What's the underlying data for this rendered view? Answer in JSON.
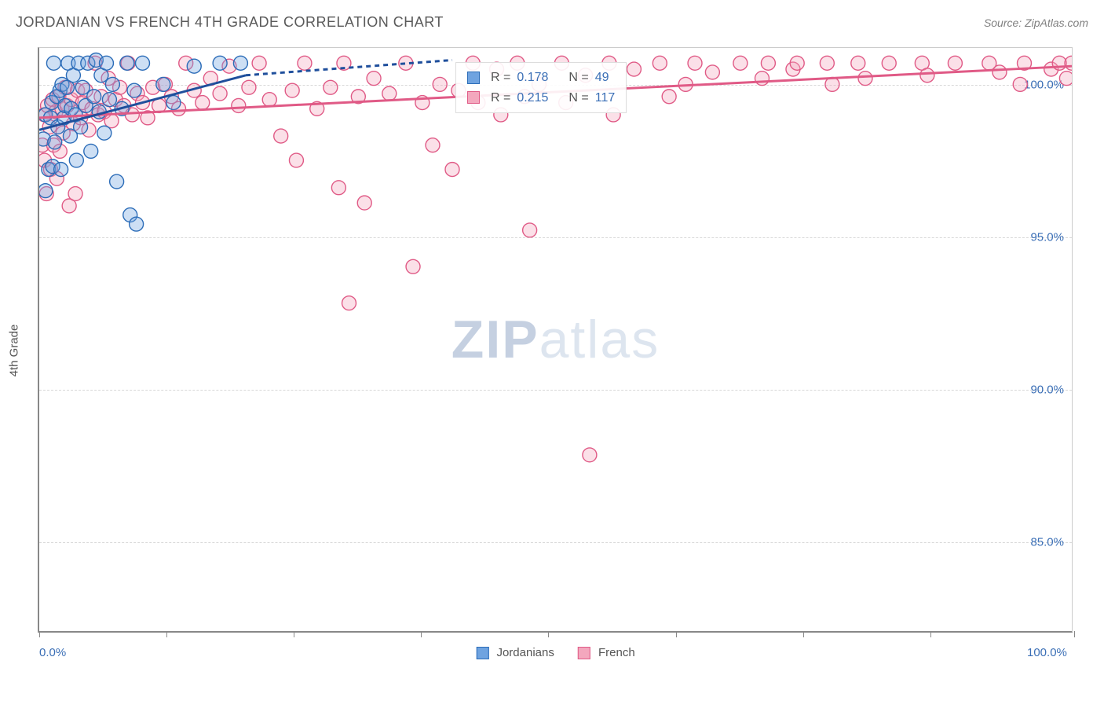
{
  "title": "JORDANIAN VS FRENCH 4TH GRADE CORRELATION CHART",
  "source": "Source: ZipAtlas.com",
  "watermark_zip": "ZIP",
  "watermark_atlas": "atlas",
  "yaxis_title": "4th Grade",
  "chart": {
    "type": "scatter",
    "xlim": [
      0,
      100
    ],
    "ylim": [
      82,
      101.2
    ],
    "background_color": "#ffffff",
    "grid_color": "#d8d8d8",
    "grid_dash": true,
    "axis_color": "#888888",
    "ytick_values": [
      85.0,
      90.0,
      95.0,
      100.0
    ],
    "ytick_labels": [
      "85.0%",
      "90.0%",
      "95.0%",
      "100.0%"
    ],
    "xtick_positions": [
      0,
      12.3,
      24.6,
      36.9,
      49.2,
      61.5,
      73.8,
      86.1,
      100
    ],
    "xaxis_labels": [
      {
        "pos": 0,
        "text": "0.0%"
      },
      {
        "pos": 100,
        "text": "100.0%"
      }
    ],
    "marker_radius": 9,
    "marker_fill_opacity": 0.35,
    "marker_stroke_width": 1.4,
    "line_width": 3,
    "dashed_line_dash": "6,5"
  },
  "series": {
    "jordanians": {
      "label": "Jordanians",
      "color_fill": "#6fa3e0",
      "color_stroke": "#2b6cb8",
      "line_color": "#1f4f9c",
      "stats": {
        "R": "0.178",
        "N": "49"
      },
      "trend_solid": {
        "x1": 0,
        "y1": 98.5,
        "x2": 20,
        "y2": 100.3
      },
      "trend_dashed": {
        "x1": 20,
        "y1": 100.3,
        "x2": 40,
        "y2": 100.8
      },
      "points": [
        [
          0.4,
          98.2
        ],
        [
          0.6,
          96.5
        ],
        [
          0.6,
          99.0
        ],
        [
          0.9,
          97.2
        ],
        [
          1.1,
          98.9
        ],
        [
          1.2,
          99.4
        ],
        [
          1.3,
          97.3
        ],
        [
          1.4,
          100.7
        ],
        [
          1.5,
          98.1
        ],
        [
          1.7,
          99.6
        ],
        [
          1.8,
          98.6
        ],
        [
          2.0,
          99.8
        ],
        [
          2.1,
          97.2
        ],
        [
          2.2,
          100.0
        ],
        [
          2.4,
          98.9
        ],
        [
          2.5,
          99.3
        ],
        [
          2.7,
          99.9
        ],
        [
          2.8,
          100.7
        ],
        [
          3.0,
          98.3
        ],
        [
          3.1,
          99.2
        ],
        [
          3.3,
          100.3
        ],
        [
          3.5,
          99.0
        ],
        [
          3.6,
          97.5
        ],
        [
          3.8,
          100.7
        ],
        [
          4.0,
          98.6
        ],
        [
          4.2,
          99.9
        ],
        [
          4.5,
          99.3
        ],
        [
          4.7,
          100.7
        ],
        [
          5.0,
          97.8
        ],
        [
          5.3,
          99.6
        ],
        [
          5.5,
          100.8
        ],
        [
          5.8,
          99.1
        ],
        [
          6.0,
          100.3
        ],
        [
          6.3,
          98.4
        ],
        [
          6.5,
          100.7
        ],
        [
          6.8,
          99.5
        ],
        [
          7.1,
          100.0
        ],
        [
          7.5,
          96.8
        ],
        [
          8.0,
          99.2
        ],
        [
          8.5,
          100.7
        ],
        [
          8.8,
          95.7
        ],
        [
          9.2,
          99.8
        ],
        [
          9.4,
          95.4
        ],
        [
          10.0,
          100.7
        ],
        [
          12.0,
          100.0
        ],
        [
          13.0,
          99.4
        ],
        [
          15.0,
          100.6
        ],
        [
          17.5,
          100.7
        ],
        [
          19.5,
          100.7
        ]
      ]
    },
    "french": {
      "label": "French",
      "color_fill": "#f3a7bd",
      "color_stroke": "#e05a86",
      "line_color": "#e05a86",
      "stats": {
        "R": "0.215",
        "N": "117"
      },
      "trend_solid": {
        "x1": 0,
        "y1": 98.9,
        "x2": 100,
        "y2": 100.6
      },
      "points": [
        [
          0.3,
          98.0
        ],
        [
          0.5,
          97.5
        ],
        [
          0.5,
          99.0
        ],
        [
          0.7,
          96.4
        ],
        [
          0.8,
          99.3
        ],
        [
          1.0,
          98.6
        ],
        [
          1.1,
          97.2
        ],
        [
          1.3,
          99.5
        ],
        [
          1.4,
          98.0
        ],
        [
          1.6,
          99.1
        ],
        [
          1.7,
          96.9
        ],
        [
          1.9,
          99.6
        ],
        [
          2.0,
          97.8
        ],
        [
          2.2,
          99.2
        ],
        [
          2.3,
          98.4
        ],
        [
          2.5,
          99.9
        ],
        [
          2.7,
          99.3
        ],
        [
          2.9,
          96.0
        ],
        [
          3.1,
          99.5
        ],
        [
          3.3,
          98.7
        ],
        [
          3.5,
          96.4
        ],
        [
          3.7,
          99.8
        ],
        [
          4.0,
          98.9
        ],
        [
          4.2,
          99.4
        ],
        [
          4.5,
          99.8
        ],
        [
          4.8,
          98.5
        ],
        [
          5.1,
          99.2
        ],
        [
          5.4,
          100.7
        ],
        [
          5.7,
          99.0
        ],
        [
          6.0,
          99.6
        ],
        [
          6.3,
          99.1
        ],
        [
          6.7,
          100.2
        ],
        [
          7.0,
          98.8
        ],
        [
          7.4,
          99.5
        ],
        [
          7.8,
          99.9
        ],
        [
          8.2,
          99.3
        ],
        [
          8.6,
          100.7
        ],
        [
          9.0,
          99.0
        ],
        [
          9.5,
          99.7
        ],
        [
          10.0,
          99.4
        ],
        [
          10.5,
          98.9
        ],
        [
          11.0,
          99.9
        ],
        [
          11.6,
          99.3
        ],
        [
          12.2,
          100.0
        ],
        [
          12.8,
          99.6
        ],
        [
          13.5,
          99.2
        ],
        [
          14.2,
          100.7
        ],
        [
          15.0,
          99.8
        ],
        [
          15.8,
          99.4
        ],
        [
          16.6,
          100.2
        ],
        [
          17.5,
          99.7
        ],
        [
          18.4,
          100.6
        ],
        [
          19.3,
          99.3
        ],
        [
          20.3,
          99.9
        ],
        [
          21.3,
          100.7
        ],
        [
          22.3,
          99.5
        ],
        [
          23.4,
          98.3
        ],
        [
          24.5,
          99.8
        ],
        [
          24.9,
          97.5
        ],
        [
          25.7,
          100.7
        ],
        [
          26.9,
          99.2
        ],
        [
          28.2,
          99.9
        ],
        [
          29.0,
          96.6
        ],
        [
          29.5,
          100.7
        ],
        [
          30.0,
          92.8
        ],
        [
          30.9,
          99.6
        ],
        [
          31.5,
          96.1
        ],
        [
          32.4,
          100.2
        ],
        [
          33.9,
          99.7
        ],
        [
          35.5,
          100.7
        ],
        [
          36.2,
          94.0
        ],
        [
          37.1,
          99.4
        ],
        [
          38.1,
          98.0
        ],
        [
          38.8,
          100.0
        ],
        [
          40.0,
          97.2
        ],
        [
          40.6,
          99.8
        ],
        [
          42.0,
          100.7
        ],
        [
          42.5,
          99.4
        ],
        [
          44.3,
          100.5
        ],
        [
          44.7,
          99.0
        ],
        [
          46.3,
          100.7
        ],
        [
          47.0,
          99.6
        ],
        [
          47.5,
          95.2
        ],
        [
          48.4,
          100.0
        ],
        [
          50.6,
          100.7
        ],
        [
          51.0,
          99.4
        ],
        [
          52.9,
          100.3
        ],
        [
          53.3,
          87.8
        ],
        [
          55.2,
          100.7
        ],
        [
          55.6,
          99.0
        ],
        [
          57.6,
          100.5
        ],
        [
          60.1,
          100.7
        ],
        [
          61.0,
          99.6
        ],
        [
          62.6,
          100.0
        ],
        [
          63.5,
          100.7
        ],
        [
          65.2,
          100.4
        ],
        [
          67.9,
          100.7
        ],
        [
          70.0,
          100.2
        ],
        [
          70.6,
          100.7
        ],
        [
          73.0,
          100.5
        ],
        [
          73.4,
          100.7
        ],
        [
          76.3,
          100.7
        ],
        [
          76.8,
          100.0
        ],
        [
          79.3,
          100.7
        ],
        [
          80.0,
          100.2
        ],
        [
          82.3,
          100.7
        ],
        [
          85.5,
          100.7
        ],
        [
          86.0,
          100.3
        ],
        [
          88.7,
          100.7
        ],
        [
          92.0,
          100.7
        ],
        [
          93.0,
          100.4
        ],
        [
          95.4,
          100.7
        ],
        [
          98.0,
          100.5
        ],
        [
          98.8,
          100.7
        ],
        [
          100.0,
          100.7
        ],
        [
          99.5,
          100.2
        ],
        [
          95.0,
          100.0
        ]
      ]
    }
  },
  "stats_labels": {
    "R": "R =",
    "N": "N ="
  }
}
